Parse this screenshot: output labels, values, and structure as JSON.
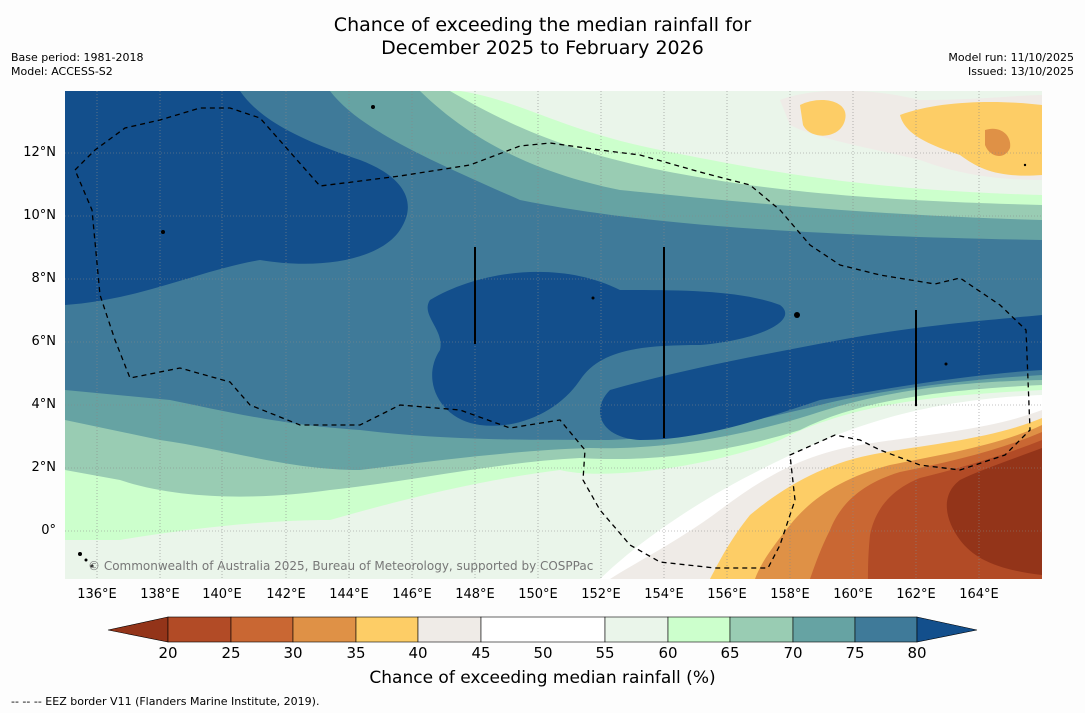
{
  "title_line1": "Chance of exceeding the median rainfall for",
  "title_line2": "December 2025 to February 2026",
  "base_period": "Base period: 1981-2018",
  "model": "Model: ACCESS-S2",
  "model_run": "Model run: 11/10/2025",
  "issued": "Issued: 13/10/2025",
  "copyright": "© Commonwealth of Australia 2025, Bureau of Meteorology, supported by COSPPac",
  "eez_note": "--  --  -- EEZ border V11 (Flanders Marine Institute, 2019).",
  "lat_labels": [
    "12°N",
    "10°N",
    "8°N",
    "6°N",
    "4°N",
    "2°N",
    "0°"
  ],
  "lon_labels": [
    "136°E",
    "138°E",
    "140°E",
    "142°E",
    "144°E",
    "146°E",
    "148°E",
    "150°E",
    "152°E",
    "154°E",
    "156°E",
    "158°E",
    "160°E",
    "162°E",
    "164°E"
  ],
  "colorbar": {
    "title": "Chance of exceeding median rainfall (%)",
    "ticks": [
      "20",
      "25",
      "30",
      "35",
      "40",
      "45",
      "50",
      "55",
      "60",
      "65",
      "70",
      "75",
      "80"
    ],
    "colors": {
      "below_20": "#933419",
      "20_25": "#b24b26",
      "25_30": "#c96733",
      "30_35": "#df9146",
      "35_40": "#fdcd66",
      "40_45": "#efebe7",
      "45_55": "#ffffff",
      "55_60": "#eaf5ea",
      "60_65": "#ccffcc",
      "65_70": "#99ccb3",
      "70_75": "#66a3a3",
      "75_80": "#3f7a99",
      "above_80": "#134f8c"
    }
  }
}
